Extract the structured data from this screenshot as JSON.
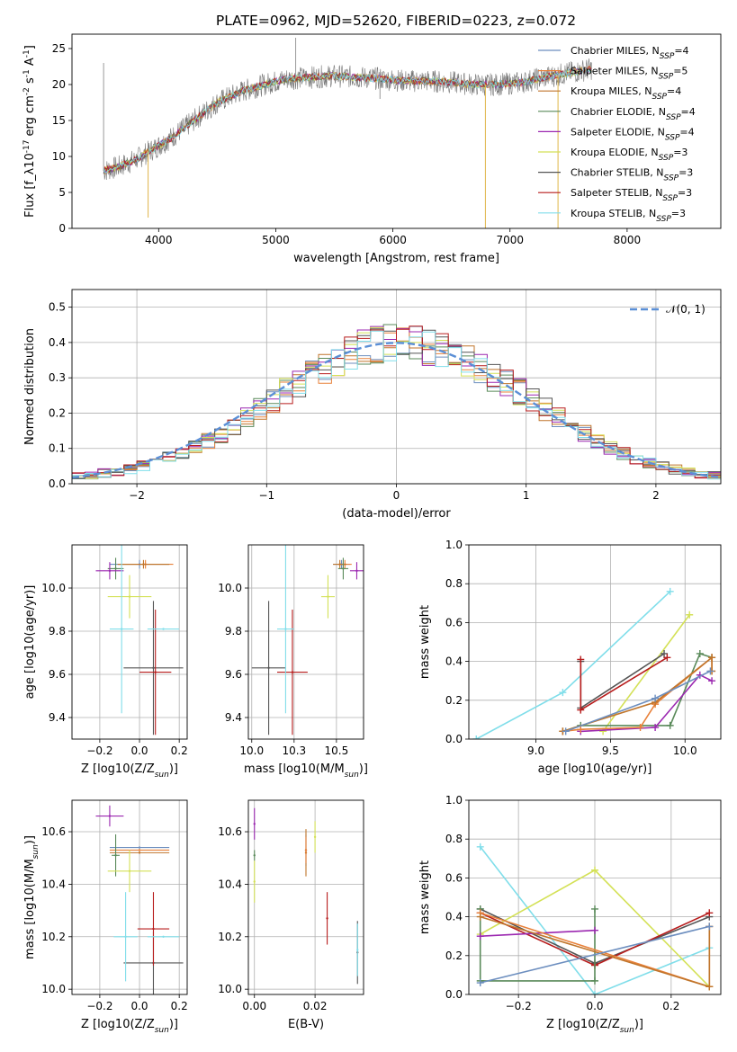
{
  "title": "PLATE=0962, MJD=52620, FIBERID=0223, z=0.072",
  "colors": {
    "Chabrier MILES": "#6c8ebf",
    "Salpeter MILES": "#e8813a",
    "Kroupa MILES": "#c0752b",
    "Chabrier ELODIE": "#5a8a5a",
    "Salpeter ELODIE": "#9b27b0",
    "Kroupa ELODIE": "#d4e157",
    "Chabrier STELIB": "#555555",
    "Salpeter STELIB": "#b71c1c",
    "Kroupa STELIB": "#80deea",
    "gaussian": "#5b8fd6",
    "grid": "#b0b0b0"
  },
  "chart_data": [
    {
      "id": "spectrum",
      "type": "line",
      "xlabel": "wavelength [Angstrom, rest frame]",
      "ylabel": "Flux [f_λ10^-17 erg cm^-2 s^-1 A^-1]",
      "xlim": [
        3260,
        8800
      ],
      "ylim": [
        0,
        27
      ],
      "xticks": [
        4000,
        5000,
        6000,
        7000,
        8000
      ],
      "yticks": [
        0,
        5,
        10,
        15,
        20,
        25
      ],
      "legend_position": "upper right",
      "legend": [
        {
          "name": "Chabrier MILES, N_SSP=4"
        },
        {
          "name": "Salpeter MILES, N_SSP=5"
        },
        {
          "name": "Kroupa MILES, N_SSP=4"
        },
        {
          "name": "Chabrier ELODIE, N_SSP=4"
        },
        {
          "name": "Salpeter ELODIE, N_SSP=4"
        },
        {
          "name": "Kroupa ELODIE, N_SSP=3"
        },
        {
          "name": "Chabrier STELIB, N_SSP=3"
        },
        {
          "name": "Salpeter STELIB, N_SSP=3"
        },
        {
          "name": "Kroupa STELIB, N_SSP=3"
        }
      ],
      "continuum": {
        "x": [
          3530,
          3650,
          3800,
          3950,
          4100,
          4300,
          4500,
          4700,
          4900,
          5100,
          5300,
          5500,
          5700,
          5900,
          6100,
          6300,
          6500,
          6700,
          6900,
          7100,
          7300,
          7500,
          7700
        ],
        "y": [
          8.0,
          8.5,
          9.5,
          11.0,
          12.5,
          15.0,
          17.5,
          19.0,
          20.0,
          20.8,
          21.0,
          21.2,
          21.0,
          20.8,
          20.5,
          20.5,
          20.3,
          20.0,
          20.0,
          20.3,
          21.0,
          21.6,
          22.2
        ]
      },
      "spikes": [
        {
          "x": 3530,
          "y": 23.0
        },
        {
          "x": 3910,
          "y": 1.5
        },
        {
          "x": 5170,
          "y": 26.5
        },
        {
          "x": 5890,
          "y": 18.0
        },
        {
          "x": 6790,
          "y": 0.0
        },
        {
          "x": 7410,
          "y": 0.0
        }
      ]
    },
    {
      "id": "residuals",
      "type": "histogram",
      "xlabel": "(data-model)/error",
      "ylabel": "Normed distribution",
      "xlim": [
        -2.5,
        2.5
      ],
      "ylim": [
        0,
        0.55
      ],
      "xticks": [
        -2,
        -1,
        0,
        1,
        2
      ],
      "yticks": [
        0.0,
        0.1,
        0.2,
        0.3,
        0.4,
        0.5
      ],
      "grid": true,
      "legend_position": "upper right",
      "gaussian_label": "𝒩(0, 1)",
      "bin_edges_start": -2.5,
      "bin_width": 0.1,
      "base": [
        0.02,
        0.022,
        0.03,
        0.035,
        0.04,
        0.05,
        0.06,
        0.075,
        0.09,
        0.105,
        0.12,
        0.14,
        0.16,
        0.185,
        0.21,
        0.235,
        0.26,
        0.285,
        0.31,
        0.33,
        0.35,
        0.37,
        0.385,
        0.395,
        0.4,
        0.4,
        0.395,
        0.385,
        0.375,
        0.36,
        0.345,
        0.325,
        0.305,
        0.285,
        0.26,
        0.235,
        0.21,
        0.19,
        0.165,
        0.14,
        0.12,
        0.1,
        0.085,
        0.07,
        0.058,
        0.048,
        0.04,
        0.033,
        0.028,
        0.024
      ],
      "series_names": [
        "Chabrier MILES",
        "Salpeter MILES",
        "Kroupa MILES",
        "Chabrier ELODIE",
        "Salpeter ELODIE",
        "Kroupa ELODIE",
        "Chabrier STELIB",
        "Salpeter STELIB",
        "Kroupa STELIB"
      ]
    },
    {
      "id": "z-age",
      "type": "scatter",
      "xlabel": "Z [log10(Z/Z_sun)]",
      "ylabel": "age  [log10(age/yr)]",
      "xlim": [
        -0.34,
        0.24
      ],
      "ylim": [
        9.3,
        10.2
      ],
      "xticks": [
        -0.2,
        0.0,
        0.2
      ],
      "yticks": [
        9.4,
        9.6,
        9.8,
        10.0
      ],
      "points": [
        {
          "s": "Chabrier MILES",
          "x": 0.0,
          "y": 10.11,
          "xe": 0.15,
          "ye": 0.02
        },
        {
          "s": "Salpeter MILES",
          "x": 0.03,
          "y": 10.11,
          "xe": 0.14,
          "ye": 0.02
        },
        {
          "s": "Kroupa MILES",
          "x": 0.02,
          "y": 10.11,
          "xe": 0.13,
          "ye": 0.02
        },
        {
          "s": "Chabrier ELODIE",
          "x": -0.12,
          "y": 10.09,
          "xe": 0.04,
          "ye": 0.05
        },
        {
          "s": "Salpeter ELODIE",
          "x": -0.15,
          "y": 10.08,
          "xe": 0.07,
          "ye": 0.04
        },
        {
          "s": "Kroupa ELODIE",
          "x": -0.05,
          "y": 9.96,
          "xe": 0.11,
          "ye": 0.1
        },
        {
          "s": "Chabrier STELIB",
          "x": 0.07,
          "y": 9.63,
          "xe": 0.15,
          "ye": 0.31
        },
        {
          "s": "Salpeter STELIB",
          "x": 0.08,
          "y": 9.61,
          "xe": 0.08,
          "ye": 0.29
        },
        {
          "s": "Kroupa STELIB",
          "x": -0.09,
          "y": 9.81,
          "xe": 0.06,
          "ye": 0.39
        },
        {
          "s": "Kroupa STELIB",
          "x": 0.12,
          "y": 9.81,
          "xe": 0.08,
          "ye": 0.0
        }
      ]
    },
    {
      "id": "mass-age",
      "type": "scatter",
      "xlabel": "mass [log10(M/M_sun)]",
      "ylabel": "",
      "xlim": [
        9.98,
        10.66
      ],
      "ylim": [
        9.3,
        10.2
      ],
      "xticks": [
        10.0,
        10.25,
        10.5
      ],
      "yticks": [
        9.4,
        9.6,
        9.8,
        10.0
      ],
      "points": [
        {
          "s": "Chabrier MILES",
          "x": 10.53,
          "y": 10.11,
          "xe": 0.05,
          "ye": 0.02
        },
        {
          "s": "Salpeter MILES",
          "x": 10.55,
          "y": 10.11,
          "xe": 0.04,
          "ye": 0.02
        },
        {
          "s": "Kroupa MILES",
          "x": 10.52,
          "y": 10.11,
          "xe": 0.04,
          "ye": 0.02
        },
        {
          "s": "Chabrier ELODIE",
          "x": 10.54,
          "y": 10.09,
          "xe": 0.03,
          "ye": 0.05
        },
        {
          "s": "Salpeter ELODIE",
          "x": 10.62,
          "y": 10.08,
          "xe": 0.04,
          "ye": 0.04
        },
        {
          "s": "Kroupa ELODIE",
          "x": 10.45,
          "y": 9.96,
          "xe": 0.04,
          "ye": 0.1
        },
        {
          "s": "Chabrier STELIB",
          "x": 10.1,
          "y": 9.63,
          "xe": 0.1,
          "ye": 0.31
        },
        {
          "s": "Salpeter STELIB",
          "x": 10.24,
          "y": 9.61,
          "xe": 0.09,
          "ye": 0.29
        },
        {
          "s": "Kroupa STELIB",
          "x": 10.2,
          "y": 9.81,
          "xe": 0.05,
          "ye": 0.39
        }
      ]
    },
    {
      "id": "age-weight",
      "type": "line",
      "xlabel": "age  [log10(age/yr)]",
      "ylabel": "mass weight",
      "xlim": [
        8.55,
        10.24
      ],
      "ylim": [
        0,
        1.0
      ],
      "xticks": [
        9.0,
        9.5,
        10.0
      ],
      "yticks": [
        0.0,
        0.2,
        0.4,
        0.6,
        0.8,
        1.0
      ],
      "series": [
        {
          "s": "Kroupa STELIB",
          "x": [
            8.6,
            9.18,
            9.9
          ],
          "y": [
            0.0,
            0.24,
            0.76
          ]
        },
        {
          "s": "Kroupa ELODIE",
          "x": [
            9.45,
            10.03
          ],
          "y": [
            0.04,
            0.64
          ]
        },
        {
          "s": "Chabrier STELIB",
          "x": [
            9.3,
            9.3,
            9.86
          ],
          "y": [
            0.4,
            0.16,
            0.44
          ]
        },
        {
          "s": "Salpeter STELIB",
          "x": [
            9.3,
            9.3,
            9.88
          ],
          "y": [
            0.41,
            0.15,
            0.42
          ]
        },
        {
          "s": "Chabrier ELODIE",
          "x": [
            9.18,
            9.3,
            9.9,
            10.1,
            10.18
          ],
          "y": [
            0.04,
            0.07,
            0.07,
            0.44,
            0.42
          ]
        },
        {
          "s": "Salpeter ELODIE",
          "x": [
            9.3,
            9.8,
            10.1,
            10.18
          ],
          "y": [
            0.04,
            0.06,
            0.33,
            0.3
          ]
        },
        {
          "s": "Salpeter MILES",
          "x": [
            9.18,
            9.3,
            9.7,
            9.8,
            10.18,
            10.18
          ],
          "y": [
            0.04,
            0.05,
            0.06,
            0.18,
            0.42,
            0.35
          ]
        },
        {
          "s": "Kroupa MILES",
          "x": [
            9.18,
            9.8,
            10.18,
            10.18
          ],
          "y": [
            0.04,
            0.19,
            0.42,
            0.35
          ]
        },
        {
          "s": "Chabrier MILES",
          "x": [
            9.2,
            9.8,
            10.17
          ],
          "y": [
            0.04,
            0.21,
            0.35
          ]
        }
      ]
    },
    {
      "id": "z-mass",
      "type": "scatter",
      "xlabel": "Z [log10(Z/Z_sun)]",
      "ylabel": "mass [log10(M/M_sun)]",
      "xlim": [
        -0.34,
        0.24
      ],
      "ylim": [
        9.98,
        10.72
      ],
      "xticks": [
        -0.2,
        0.0,
        0.2
      ],
      "yticks": [
        10.0,
        10.2,
        10.4,
        10.6
      ],
      "points": [
        {
          "s": "Chabrier MILES",
          "x": 0.0,
          "y": 10.54,
          "xe": 0.15,
          "ye": 0.0
        },
        {
          "s": "Salpeter MILES",
          "x": 0.0,
          "y": 10.53,
          "xe": 0.15,
          "ye": 0.0
        },
        {
          "s": "Kroupa MILES",
          "x": 0.0,
          "y": 10.52,
          "xe": 0.15,
          "ye": 0.0
        },
        {
          "s": "Chabrier ELODIE",
          "x": -0.12,
          "y": 10.51,
          "xe": 0.02,
          "ye": 0.08
        },
        {
          "s": "Salpeter ELODIE",
          "x": -0.15,
          "y": 10.66,
          "xe": 0.07,
          "ye": 0.04
        },
        {
          "s": "Kroupa ELODIE",
          "x": -0.05,
          "y": 10.45,
          "xe": 0.11,
          "ye": 0.08
        },
        {
          "s": "Chabrier STELIB",
          "x": 0.07,
          "y": 10.1,
          "xe": 0.15,
          "ye": 0.12
        },
        {
          "s": "Salpeter STELIB",
          "x": 0.07,
          "y": 10.23,
          "xe": 0.08,
          "ye": 0.14
        },
        {
          "s": "Kroupa STELIB",
          "x": -0.07,
          "y": 10.2,
          "xe": 0.06,
          "ye": 0.17
        },
        {
          "s": "Kroupa STELIB",
          "x": 0.12,
          "y": 10.2,
          "xe": 0.08,
          "ye": 0.0
        }
      ]
    },
    {
      "id": "ebv-mass",
      "type": "scatter",
      "xlabel": "E(B-V)",
      "ylabel": "",
      "xlim": [
        -0.002,
        0.036
      ],
      "ylim": [
        9.98,
        10.72
      ],
      "xticks": [
        0.0,
        0.02
      ],
      "yticks": [
        10.0,
        10.2,
        10.4,
        10.6
      ],
      "points": [
        {
          "s": "Salpeter ELODIE",
          "x": 0.0,
          "y": 10.63,
          "xe": 0,
          "ye": 0.06
        },
        {
          "s": "Kroupa ELODIE",
          "x": 0.0,
          "y": 10.41,
          "xe": 0,
          "ye": 0.08
        },
        {
          "s": "Chabrier ELODIE",
          "x": 0.0,
          "y": 10.51,
          "xe": 0,
          "ye": 0.02
        },
        {
          "s": "Chabrier MILES",
          "x": 0.017,
          "y": 10.53,
          "xe": 0,
          "ye": 0.06
        },
        {
          "s": "Kroupa MILES",
          "x": 0.017,
          "y": 10.52,
          "xe": 0,
          "ye": 0.09
        },
        {
          "s": "Salpeter MILES",
          "x": 0.017,
          "y": 10.53,
          "xe": 0,
          "ye": 0.05
        },
        {
          "s": "Kroupa ELODIE",
          "x": 0.02,
          "y": 10.58,
          "xe": 0,
          "ye": 0.06
        },
        {
          "s": "Salpeter STELIB",
          "x": 0.024,
          "y": 10.27,
          "xe": 0,
          "ye": 0.1
        },
        {
          "s": "Chabrier STELIB",
          "x": 0.034,
          "y": 10.14,
          "xe": 0,
          "ye": 0.12
        },
        {
          "s": "Kroupa STELIB",
          "x": 0.034,
          "y": 10.15,
          "xe": 0,
          "ye": 0.1
        }
      ]
    },
    {
      "id": "z-weight",
      "type": "line",
      "xlabel": "Z [log10(Z/Z_sun)]",
      "ylabel": "mass weight",
      "xlim": [
        -0.33,
        0.33
      ],
      "ylim": [
        0,
        1.0
      ],
      "xticks": [
        -0.2,
        0.0,
        0.2
      ],
      "yticks": [
        0.0,
        0.2,
        0.4,
        0.6,
        0.8,
        1.0
      ],
      "series": [
        {
          "s": "Kroupa STELIB",
          "x": [
            -0.3,
            0.0,
            0.3
          ],
          "y": [
            0.76,
            0.0,
            0.24
          ]
        },
        {
          "s": "Kroupa ELODIE",
          "x": [
            -0.3,
            0.0,
            0.3
          ],
          "y": [
            0.31,
            0.64,
            0.04
          ]
        },
        {
          "s": "Chabrier STELIB",
          "x": [
            -0.3,
            0.0,
            0.3
          ],
          "y": [
            0.44,
            0.16,
            0.4
          ]
        },
        {
          "s": "Salpeter STELIB",
          "x": [
            -0.3,
            0.0,
            0.3
          ],
          "y": [
            0.42,
            0.15,
            0.42
          ]
        },
        {
          "s": "Chabrier ELODIE",
          "x": [
            -0.3,
            -0.3,
            0.0,
            0.0
          ],
          "y": [
            0.44,
            0.07,
            0.07,
            0.44
          ]
        },
        {
          "s": "Salpeter ELODIE",
          "x": [
            -0.3,
            0.0
          ],
          "y": [
            0.3,
            0.33
          ]
        },
        {
          "s": "Salpeter MILES",
          "x": [
            -0.3,
            0.3,
            0.3
          ],
          "y": [
            0.42,
            0.04,
            0.35
          ]
        },
        {
          "s": "Kroupa MILES",
          "x": [
            -0.3,
            0.3,
            0.3
          ],
          "y": [
            0.4,
            0.04,
            0.35
          ]
        },
        {
          "s": "Chabrier MILES",
          "x": [
            -0.3,
            0.3
          ],
          "y": [
            0.06,
            0.35
          ]
        }
      ]
    }
  ]
}
